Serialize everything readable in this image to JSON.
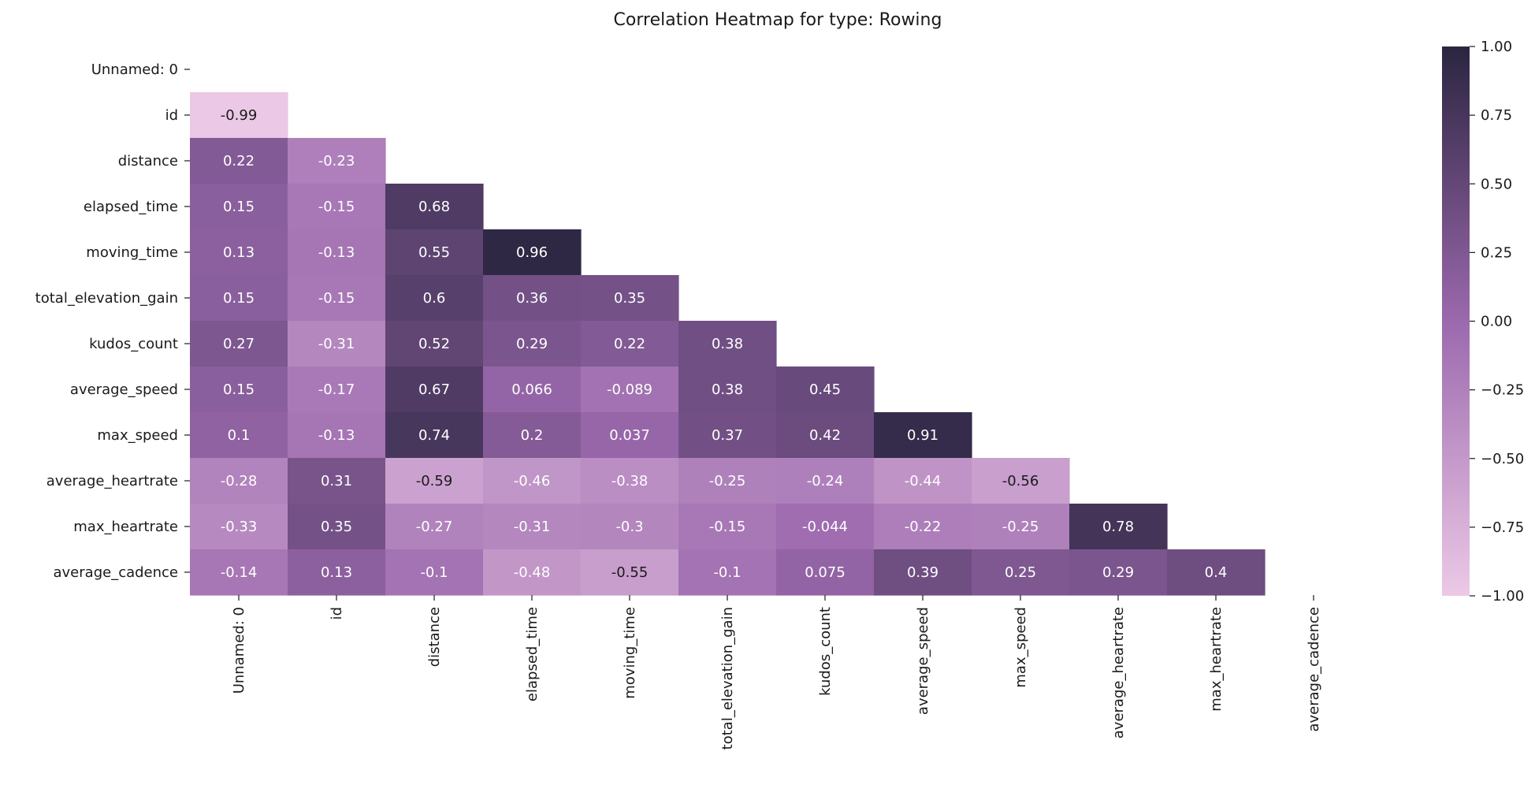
{
  "chart_data": {
    "type": "heatmap",
    "title": "Correlation Heatmap for type: Rowing",
    "mask": "upper-triangle-including-diagonal",
    "labels": [
      "Unnamed: 0",
      "id",
      "distance",
      "elapsed_time",
      "moving_time",
      "total_elevation_gain",
      "kudos_count",
      "average_speed",
      "max_speed",
      "average_heartrate",
      "max_heartrate",
      "average_cadence"
    ],
    "values": [
      [
        null,
        null,
        null,
        null,
        null,
        null,
        null,
        null,
        null,
        null,
        null,
        null
      ],
      [
        -0.99,
        null,
        null,
        null,
        null,
        null,
        null,
        null,
        null,
        null,
        null,
        null
      ],
      [
        0.22,
        -0.23,
        null,
        null,
        null,
        null,
        null,
        null,
        null,
        null,
        null,
        null
      ],
      [
        0.15,
        -0.15,
        0.68,
        null,
        null,
        null,
        null,
        null,
        null,
        null,
        null,
        null
      ],
      [
        0.13,
        -0.13,
        0.55,
        0.96,
        null,
        null,
        null,
        null,
        null,
        null,
        null,
        null
      ],
      [
        0.15,
        -0.15,
        0.6,
        0.36,
        0.35,
        null,
        null,
        null,
        null,
        null,
        null,
        null
      ],
      [
        0.27,
        -0.31,
        0.52,
        0.29,
        0.22,
        0.38,
        null,
        null,
        null,
        null,
        null,
        null
      ],
      [
        0.15,
        -0.17,
        0.67,
        0.066,
        -0.089,
        0.38,
        0.45,
        null,
        null,
        null,
        null,
        null
      ],
      [
        0.1,
        -0.13,
        0.74,
        0.2,
        0.037,
        0.37,
        0.42,
        0.91,
        null,
        null,
        null,
        null
      ],
      [
        -0.28,
        0.31,
        -0.59,
        -0.46,
        -0.38,
        -0.25,
        -0.24,
        -0.44,
        -0.56,
        null,
        null,
        null
      ],
      [
        -0.33,
        0.35,
        -0.27,
        -0.31,
        -0.3,
        -0.15,
        -0.044,
        -0.22,
        -0.25,
        0.78,
        null,
        null
      ],
      [
        -0.14,
        0.13,
        -0.1,
        -0.48,
        -0.55,
        -0.1,
        0.075,
        0.39,
        0.25,
        0.29,
        0.4,
        null
      ]
    ],
    "colorbar": {
      "ticks": [
        "1.00",
        "0.75",
        "0.50",
        "0.25",
        "0.00",
        "−0.25",
        "−0.50",
        "−0.75",
        "−1.00"
      ],
      "vmin": -1,
      "vmax": 1
    },
    "colormap": {
      "low": "#ecc9e6",
      "mid": "#9b69ad",
      "high": "#2b2540"
    }
  }
}
